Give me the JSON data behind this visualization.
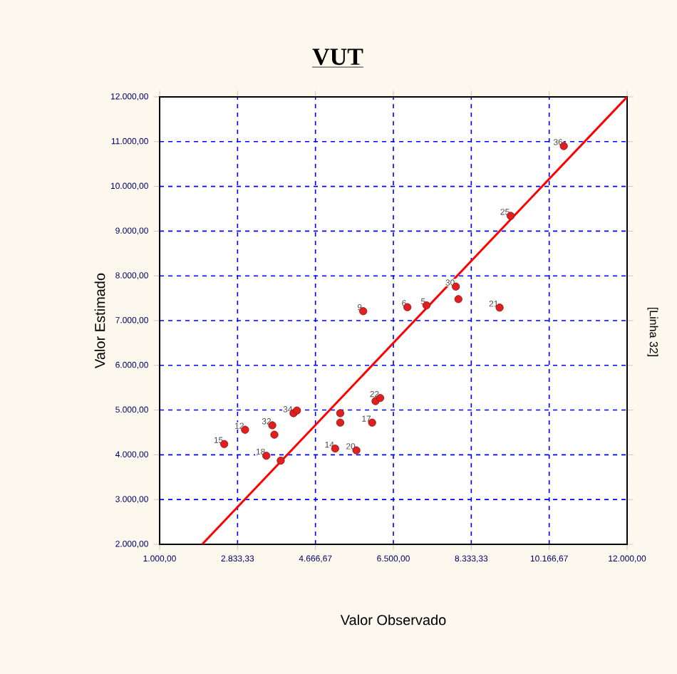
{
  "chart_data": {
    "type": "scatter",
    "title": "VUT",
    "xlabel": "Valor Observado",
    "ylabel": "Valor Estimado",
    "annotations": [
      "[Linha 32]",
      {
        "text": "15",
        "x": 2520,
        "y": 4240
      },
      {
        "text": "12",
        "x": 3010,
        "y": 4560
      },
      {
        "text": "32",
        "x": 3650,
        "y": 4660
      },
      {
        "text": "18",
        "x": 3510,
        "y": 3980
      },
      {
        "text": "34",
        "x": 4150,
        "y": 4930
      },
      {
        "text": "14",
        "x": 5130,
        "y": 4140
      },
      {
        "text": "20",
        "x": 5630,
        "y": 4100
      },
      {
        "text": "17",
        "x": 6000,
        "y": 4720
      },
      {
        "text": "22",
        "x": 6190,
        "y": 5270
      },
      {
        "text": "9",
        "x": 5785,
        "y": 7210
      },
      {
        "text": "6",
        "x": 6830,
        "y": 7300
      },
      {
        "text": "5",
        "x": 7280,
        "y": 7340
      },
      {
        "text": "30",
        "x": 7970,
        "y": 7760
      },
      {
        "text": "21",
        "x": 8995,
        "y": 7290
      },
      {
        "text": "25",
        "x": 9260,
        "y": 9340
      },
      {
        "text": "36",
        "x": 10510,
        "y": 10900
      }
    ],
    "series": [
      {
        "color": "#e02020",
        "x": [
          2520,
          3010,
          3650,
          3700,
          3510,
          3850,
          4150,
          4230,
          5250,
          5250,
          5130,
          5630,
          6000,
          6080,
          6190,
          5790,
          6830,
          7280,
          7970,
          8030,
          9000,
          9260,
          10510
        ],
        "values": [
          4240,
          4560,
          4660,
          4450,
          3980,
          3870,
          4930,
          4990,
          4930,
          4720,
          4140,
          4100,
          4720,
          5200,
          5270,
          7210,
          7300,
          7340,
          7760,
          7480,
          7290,
          9340,
          10900
        ]
      },
      {
        "type": "line",
        "color": "#ff0000",
        "marker": "none",
        "x": [
          2000,
          12000
        ],
        "values": [
          2000,
          12000
        ]
      }
    ],
    "xlim": [
      1000,
      12000
    ],
    "ylim": [
      2000,
      12000
    ],
    "xticks": [
      {
        "value": 1000,
        "label": "1.000,00"
      },
      {
        "value": 2833.33,
        "label": "2.833,33"
      },
      {
        "value": 4666.67,
        "label": "4.666,67"
      },
      {
        "value": 6500,
        "label": "6.500,00"
      },
      {
        "value": 8333.33,
        "label": "8.333,33"
      },
      {
        "value": 10166.67,
        "label": "10.166,67"
      },
      {
        "value": 12000,
        "label": "12.000,00"
      }
    ],
    "yticks": [
      {
        "value": 2000,
        "label": "2.000,00"
      },
      {
        "value": 3000,
        "label": "3.000,00"
      },
      {
        "value": 4000,
        "label": "4.000,00"
      },
      {
        "value": 5000,
        "label": "5.000,00"
      },
      {
        "value": 6000,
        "label": "6.000,00"
      },
      {
        "value": 7000,
        "label": "7.000,00"
      },
      {
        "value": 8000,
        "label": "8.000,00"
      },
      {
        "value": 9000,
        "label": "9.000,00"
      },
      {
        "value": 10000,
        "label": "10.000,00"
      },
      {
        "value": 11000,
        "label": "11.000,00"
      },
      {
        "value": 12000,
        "label": "12.000,00"
      }
    ],
    "grid": true,
    "marker": "circle"
  }
}
